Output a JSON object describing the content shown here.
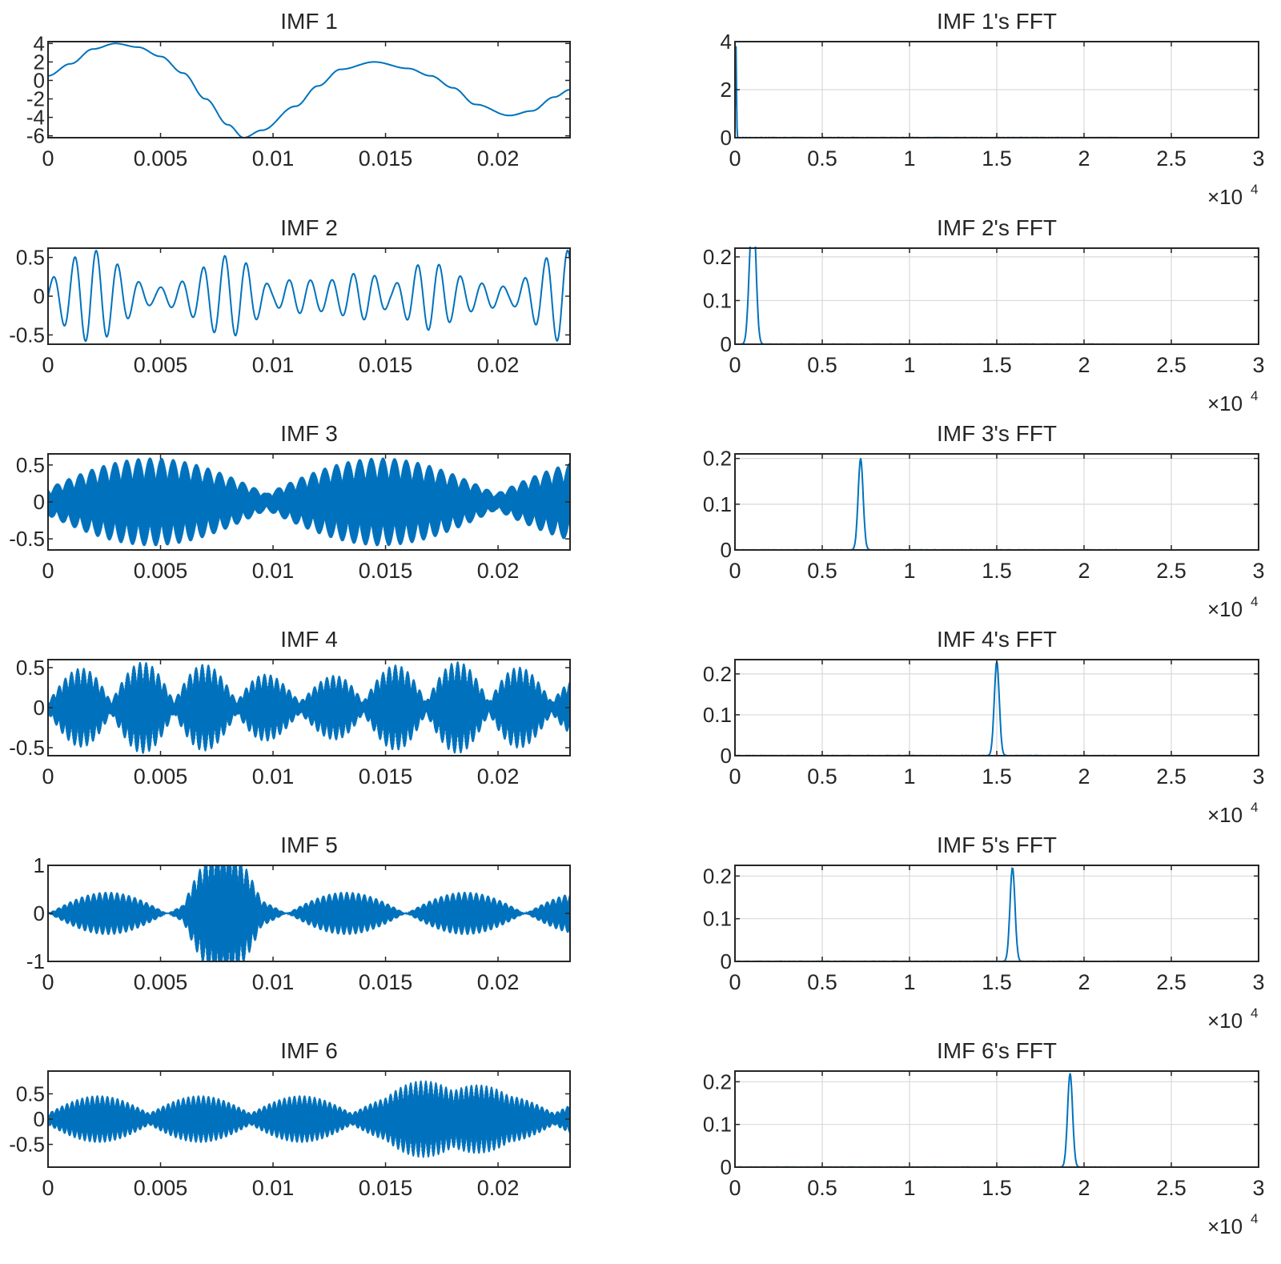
{
  "figure": {
    "line_color": "#0072BD",
    "axes_color": "#262626",
    "grid_color": "#d9d9d9"
  },
  "chart_data": [
    {
      "type": "line",
      "title": "IMF 1",
      "xlabel": "",
      "ylabel": "",
      "xlim": [
        0,
        0.0232
      ],
      "ylim": [
        -6.2,
        4.2
      ],
      "xticks": [
        "0",
        "0.005",
        "0.01",
        "0.015",
        "0.02"
      ],
      "yticks": [
        "4",
        "2",
        "0",
        "-2",
        "-4",
        "-6"
      ],
      "grid": false,
      "description": "Low-frequency oscillation: starts ~0.5, peak ~4 at 0.003, min ~-6.2 at 0.0087, peak ~2 at 0.0145, shoulder ~0.5 at 0.017, min ~-3.8 at 0.0205, ends ~-1 at 0.0232",
      "x": [
        0,
        0.001,
        0.002,
        0.003,
        0.004,
        0.005,
        0.006,
        0.007,
        0.008,
        0.0087,
        0.0095,
        0.011,
        0.012,
        0.013,
        0.0145,
        0.016,
        0.017,
        0.018,
        0.019,
        0.0205,
        0.0215,
        0.0225,
        0.0232
      ],
      "y": [
        0.5,
        1.8,
        3.4,
        4.0,
        3.6,
        2.6,
        0.8,
        -2.0,
        -4.8,
        -6.2,
        -5.4,
        -2.8,
        -0.6,
        1.2,
        2.0,
        1.3,
        0.5,
        -0.8,
        -2.6,
        -3.8,
        -3.3,
        -1.8,
        -1.0
      ]
    },
    {
      "type": "line",
      "title": "IMF 2",
      "xlim": [
        0,
        0.0232
      ],
      "ylim": [
        -0.62,
        0.62
      ],
      "xticks": [
        "0",
        "0.005",
        "0.01",
        "0.015",
        "0.02"
      ],
      "yticks": [
        "0.5",
        "0",
        "-0.5"
      ],
      "grid": false,
      "description": "Oscillation ~1 kHz with amplitude modulated between ~0.1 and ~0.6"
    },
    {
      "type": "line",
      "title": "IMF 3",
      "xlim": [
        0,
        0.0232
      ],
      "ylim": [
        -0.65,
        0.65
      ],
      "xticks": [
        "0",
        "0.005",
        "0.01",
        "0.015",
        "0.02"
      ],
      "yticks": [
        "0.5",
        "0",
        "-0.5"
      ],
      "grid": false,
      "description": "Dense ~7 kHz carrier with beating envelope (max ~0.6)"
    },
    {
      "type": "line",
      "title": "IMF 4",
      "xlim": [
        0,
        0.0232
      ],
      "ylim": [
        -0.6,
        0.6
      ],
      "xticks": [
        "0",
        "0.005",
        "0.01",
        "0.015",
        "0.02"
      ],
      "yticks": [
        "0.5",
        "0",
        "-0.5"
      ],
      "grid": false,
      "description": "Dense ~15 kHz carrier with beating envelope (max ~0.6)"
    },
    {
      "type": "line",
      "title": "IMF 5",
      "xlim": [
        0,
        0.0232
      ],
      "ylim": [
        -1,
        1
      ],
      "xticks": [
        "0",
        "0.005",
        "0.01",
        "0.015",
        "0.02"
      ],
      "yticks": [
        "1",
        "0",
        "-1"
      ],
      "grid": false,
      "description": "Dense ~16 kHz carrier; envelope peaks ~1 near 0.007"
    },
    {
      "type": "line",
      "title": "IMF 6",
      "xlim": [
        0,
        0.0232
      ],
      "ylim": [
        -0.95,
        0.95
      ],
      "xticks": [
        "0",
        "0.005",
        "0.01",
        "0.015",
        "0.02"
      ],
      "yticks": [
        "0.5",
        "0",
        "-0.5"
      ],
      "grid": false,
      "description": "Dense ~19 kHz carrier; envelope peaks ~0.9 near 0.0175"
    },
    {
      "type": "line",
      "title": "IMF 1's FFT",
      "xlim": [
        0,
        30000
      ],
      "ylim": [
        0,
        4
      ],
      "x_multiplier": "×10^4",
      "xticks": [
        "0",
        "0.5",
        "1",
        "1.5",
        "2",
        "2.5",
        "3"
      ],
      "yticks": [
        "4",
        "2",
        "0"
      ],
      "grid": true,
      "peaks": [
        {
          "x": 50,
          "y": 4.0
        }
      ],
      "x_extent": 22050
    },
    {
      "type": "line",
      "title": "IMF 2's FFT",
      "xlim": [
        0,
        30000
      ],
      "ylim": [
        0,
        0.22
      ],
      "x_multiplier": "×10^4",
      "xticks": [
        "0",
        "0.5",
        "1",
        "1.5",
        "2",
        "2.5",
        "3"
      ],
      "yticks": [
        "0.2",
        "0.1",
        "0"
      ],
      "grid": true,
      "peaks": [
        {
          "x": 900,
          "y": 0.17
        },
        {
          "x": 1100,
          "y": 0.22
        }
      ],
      "x_extent": 22050
    },
    {
      "type": "line",
      "title": "IMF 3's FFT",
      "xlim": [
        0,
        30000
      ],
      "ylim": [
        0,
        0.21
      ],
      "x_multiplier": "×10^4",
      "xticks": [
        "0",
        "0.5",
        "1",
        "1.5",
        "2",
        "2.5",
        "3"
      ],
      "yticks": [
        "0.2",
        "0.1",
        "0"
      ],
      "grid": true,
      "peaks": [
        {
          "x": 7200,
          "y": 0.2
        }
      ],
      "x_extent": 22050
    },
    {
      "type": "line",
      "title": "IMF 4's FFT",
      "xlim": [
        0,
        30000
      ],
      "ylim": [
        0,
        0.235
      ],
      "x_multiplier": "×10^4",
      "xticks": [
        "0",
        "0.5",
        "1",
        "1.5",
        "2",
        "2.5",
        "3"
      ],
      "yticks": [
        "0.2",
        "0.1",
        "0"
      ],
      "grid": true,
      "peaks": [
        {
          "x": 15000,
          "y": 0.23
        }
      ],
      "x_extent": 22050
    },
    {
      "type": "line",
      "title": "IMF 5's FFT",
      "xlim": [
        0,
        30000
      ],
      "ylim": [
        0,
        0.225
      ],
      "x_multiplier": "×10^4",
      "xticks": [
        "0",
        "0.5",
        "1",
        "1.5",
        "2",
        "2.5",
        "3"
      ],
      "yticks": [
        "0.2",
        "0.1",
        "0"
      ],
      "grid": true,
      "peaks": [
        {
          "x": 15900,
          "y": 0.22
        }
      ],
      "x_extent": 22050
    },
    {
      "type": "line",
      "title": "IMF 6's FFT",
      "xlim": [
        0,
        30000
      ],
      "ylim": [
        0,
        0.225
      ],
      "x_multiplier": "×10^4",
      "xticks": [
        "0",
        "0.5",
        "1",
        "1.5",
        "2",
        "2.5",
        "3"
      ],
      "yticks": [
        "0.2",
        "0.1",
        "0"
      ],
      "grid": true,
      "peaks": [
        {
          "x": 19200,
          "y": 0.22
        }
      ],
      "x_extent": 22050
    }
  ]
}
